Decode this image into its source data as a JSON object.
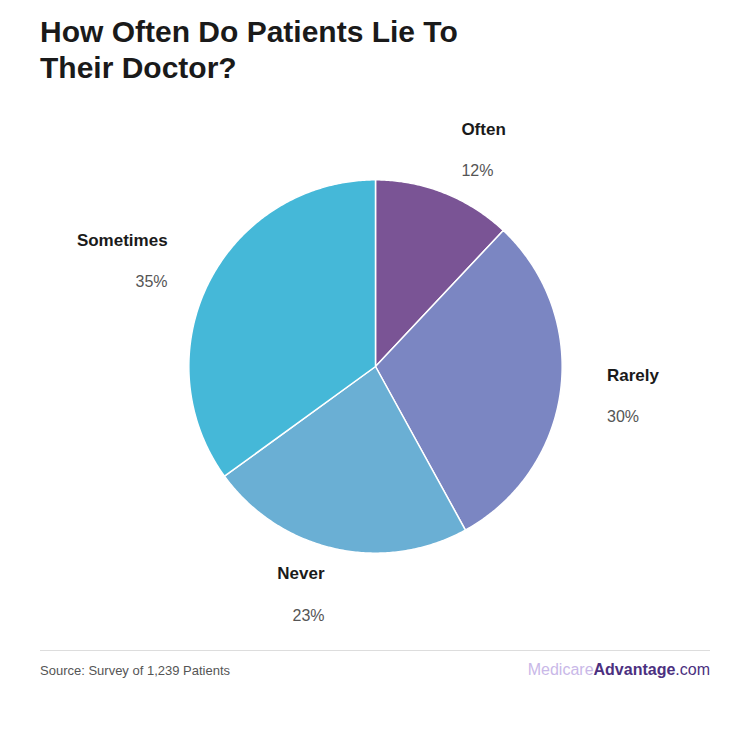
{
  "chart_data": {
    "type": "pie",
    "title": "How Often Do Patients Lie To",
    "subtitle": "Their Doctor?",
    "categories": [
      "Often",
      "Rarely",
      "Never",
      "Sometimes"
    ],
    "values": [
      12,
      30,
      23,
      35
    ],
    "value_labels": [
      "12%",
      "30%",
      "23%",
      "35%"
    ],
    "colors": [
      "#7A5495",
      "#7B86C2",
      "#6AAFD4",
      "#45B8D8"
    ],
    "data_labels": true,
    "caption": "Source: Survey of 1,239 Patients",
    "annotations": [
      {
        "text": "Medicare",
        "color": "#C9B8E8"
      },
      {
        "text": "Advantage",
        "color": "#4B3080"
      },
      {
        "text": ".com",
        "color": "#4B3080"
      }
    ]
  }
}
